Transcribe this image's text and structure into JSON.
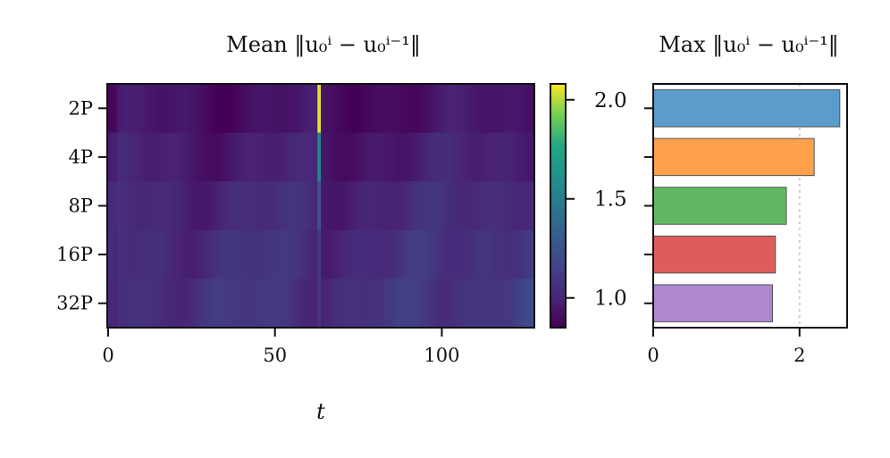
{
  "chart_data": [
    {
      "type": "heatmap",
      "title": "Mean ‖u₀ⁱ − u₀ⁱ⁻¹‖",
      "xlabel": "t",
      "ylabel": "",
      "categories": [
        "2P",
        "4P",
        "8P",
        "16P",
        "32P"
      ],
      "x_ticks": [
        0,
        50,
        100
      ],
      "xlim": [
        0,
        127
      ],
      "colormap": "viridis",
      "colorbar": {
        "vmin": 0.85,
        "vmax": 2.08,
        "ticks": [
          "1.0",
          "1.5",
          "2.0"
        ],
        "tick_values": [
          1.0,
          1.5,
          2.0
        ]
      },
      "spike_t": 63,
      "spike_values": [
        2.05,
        1.55,
        1.25,
        1.12,
        1.08
      ],
      "baseline_rows": [
        0.92,
        0.97,
        1.02,
        1.05,
        1.07
      ]
    },
    {
      "type": "bar",
      "orientation": "horizontal",
      "title": "Max ‖u₀ⁱ − u₀ⁱ⁻¹‖",
      "categories": [
        "2P",
        "4P",
        "8P",
        "16P",
        "32P"
      ],
      "values": [
        2.55,
        2.2,
        1.82,
        1.67,
        1.63
      ],
      "xlim": [
        0,
        2.65
      ],
      "x_ticks": [
        "0",
        "2"
      ],
      "reference_line": 2,
      "colors": [
        "#5a9dcb",
        "#ffa04c",
        "#62b862",
        "#de5c5c",
        "#ae88cf"
      ]
    }
  ]
}
